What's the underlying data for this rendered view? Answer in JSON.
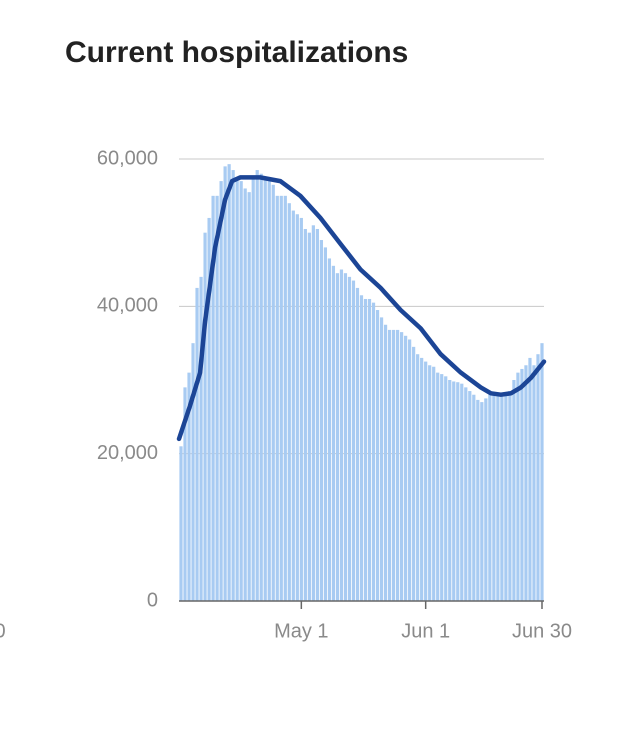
{
  "chart_data": {
    "type": "bar-line",
    "title": "Current hospitalizations",
    "ylim": [
      0,
      60000
    ],
    "yticks": [
      0,
      {
        "value": 20000,
        "label": "20,000"
      },
      {
        "value": 40000,
        "label": "40,000"
      },
      {
        "value": 60000,
        "label": "60,000"
      }
    ],
    "grid": true,
    "xlim": [
      0.5,
      91.5
    ],
    "xticks": [
      {
        "value": 31,
        "label": "May 1"
      },
      {
        "value": 62,
        "label": "Jun 1"
      },
      {
        "value": 91,
        "label": "Jun 30"
      }
    ],
    "clipped_label": "0",
    "bars": {
      "color": "#a8cbf2",
      "x": [
        1,
        2,
        3,
        4,
        5,
        6,
        7,
        8,
        9,
        10,
        11,
        12,
        13,
        14,
        15,
        16,
        17,
        18,
        19,
        20,
        21,
        22,
        23,
        24,
        25,
        26,
        27,
        28,
        29,
        30,
        31,
        32,
        33,
        34,
        35,
        36,
        37,
        38,
        39,
        40,
        41,
        42,
        43,
        44,
        45,
        46,
        47,
        48,
        49,
        50,
        51,
        52,
        53,
        54,
        55,
        56,
        57,
        58,
        59,
        60,
        61,
        62,
        63,
        64,
        65,
        66,
        67,
        68,
        69,
        70,
        71,
        72,
        73,
        74,
        75,
        76,
        77,
        78,
        79,
        80,
        81,
        82,
        83,
        84,
        85,
        86,
        87,
        88,
        89,
        90,
        91
      ],
      "values": [
        21000,
        29000,
        31000,
        35000,
        42500,
        44000,
        50000,
        52000,
        55000,
        55000,
        57000,
        59000,
        59300,
        58500,
        57000,
        57000,
        56000,
        55500,
        57500,
        58500,
        58000,
        57500,
        57000,
        56500,
        55000,
        55000,
        55000,
        54000,
        53000,
        52500,
        52000,
        50500,
        50000,
        51000,
        50500,
        49000,
        48000,
        46500,
        45500,
        44500,
        45000,
        44500,
        44000,
        43500,
        42500,
        41500,
        41000,
        41000,
        40500,
        39500,
        38500,
        37500,
        36800,
        36800,
        36800,
        36500,
        36000,
        35500,
        34500,
        33500,
        33000,
        32500,
        32000,
        31800,
        31000,
        30800,
        30500,
        30000,
        29800,
        29700,
        29500,
        29000,
        28500,
        28000,
        27300,
        27000,
        27500,
        28000,
        28000,
        28000,
        28000,
        28000,
        28500,
        30000,
        31000,
        31500,
        32000,
        33000,
        32000,
        33500,
        35000
      ]
    },
    "line": {
      "color": "#1c4596",
      "x": [
        0.5,
        3.25,
        5.75,
        7,
        9.5,
        12,
        13.75,
        15.75,
        20.75,
        25.75,
        30.75,
        35.75,
        40.75,
        45.75,
        50.75,
        55.75,
        60.75,
        65.75,
        70.75,
        75.75,
        78.25,
        80.75,
        83.25,
        85.75,
        88.25,
        91.5
      ],
      "values": [
        22000,
        26500,
        31000,
        38000,
        48000,
        54500,
        57000,
        57500,
        57500,
        57000,
        55000,
        52000,
        48500,
        45000,
        42500,
        39500,
        37000,
        33500,
        31000,
        29000,
        28200,
        28000,
        28200,
        29000,
        30300,
        32500
      ]
    }
  }
}
